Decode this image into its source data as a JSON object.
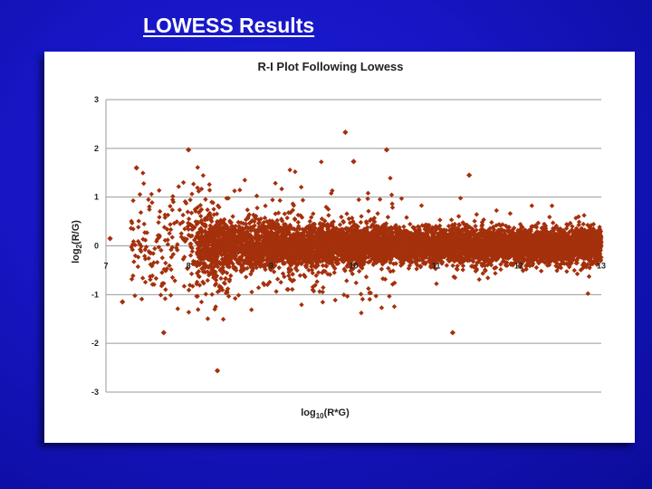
{
  "slide": {
    "title": "LOWESS Results"
  },
  "chart_data": {
    "type": "scatter",
    "title": "R-I Plot Following Lowess",
    "xlabel_main": "log",
    "xlabel_sub": "10",
    "xlabel_rest": "(R*G)",
    "ylabel_main": "log",
    "ylabel_sub": "2",
    "ylabel_rest": "(R/G)",
    "xlim": [
      7,
      13
    ],
    "ylim": [
      -3,
      3
    ],
    "x_ticks": [
      "7",
      "8",
      "9",
      "10",
      "11",
      "12",
      "13"
    ],
    "y_ticks": [
      "3",
      "2",
      "1",
      "0",
      "-1",
      "-2",
      "-3"
    ],
    "grid": "horizontal",
    "marker_color": "#a4300c",
    "notable_points": [
      {
        "x": 9.9,
        "y": 2.33
      },
      {
        "x": 8.0,
        "y": 1.97
      },
      {
        "x": 10.4,
        "y": 1.97
      },
      {
        "x": 10.0,
        "y": 1.73
      },
      {
        "x": 7.37,
        "y": 1.6
      },
      {
        "x": 11.4,
        "y": 1.45
      },
      {
        "x": 7.05,
        "y": 0.15
      },
      {
        "x": 7.2,
        "y": -1.15
      },
      {
        "x": 7.7,
        "y": -1.78
      },
      {
        "x": 11.2,
        "y": -1.78
      },
      {
        "x": 8.35,
        "y": -2.56
      }
    ]
  }
}
